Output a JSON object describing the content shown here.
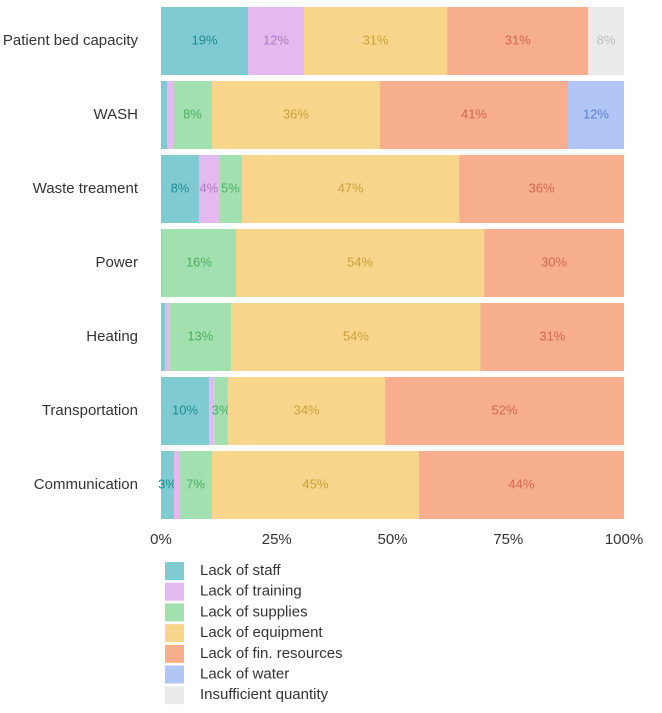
{
  "chart_data": {
    "type": "stacked-barh",
    "categories": [
      "Patient bed capacity",
      "WASH",
      "Waste treament",
      "Power",
      "Heating",
      "Transportation",
      "Communication"
    ],
    "series": [
      {
        "name": "Lack of staff",
        "color": "#80cbd1",
        "label_color": "#1f8a93",
        "values": [
          18.8,
          1.3,
          8.2,
          0.2,
          0.9,
          10.4,
          2.8
        ],
        "value_labels": [
          "19%",
          null,
          "8%",
          null,
          null,
          "10%",
          "3%"
        ]
      },
      {
        "name": "Lack of training",
        "color": "#e4b9ef",
        "label_color": "#b27bc4",
        "values": [
          12.1,
          1.3,
          4.3,
          0,
          0.9,
          1.1,
          1.1
        ],
        "value_labels": [
          "12%",
          null,
          "4%",
          null,
          null,
          null,
          null
        ]
      },
      {
        "name": "Lack of supplies",
        "color": "#a3e0b0",
        "label_color": "#4cae63",
        "values": [
          0,
          8.4,
          5.0,
          16.0,
          13.4,
          3.0,
          7.1
        ],
        "value_labels": [
          null,
          "8%",
          "5%",
          "16%",
          "13%",
          "3%",
          "7%"
        ]
      },
      {
        "name": "Lack of equipment",
        "color": "#f7d68b",
        "label_color": "#c9a13b",
        "values": [
          30.9,
          36.3,
          46.9,
          53.6,
          53.8,
          33.9,
          44.7
        ],
        "value_labels": [
          "31%",
          "36%",
          "47%",
          "54%",
          "54%",
          "34%",
          "45%"
        ]
      },
      {
        "name": "Lack of fin. resources",
        "color": "#f6ae8d",
        "label_color": "#d0694a",
        "values": [
          30.5,
          40.6,
          35.6,
          30.2,
          31.0,
          51.6,
          44.3
        ],
        "value_labels": [
          "31%",
          "41%",
          "36%",
          "30%",
          "31%",
          "52%",
          "44%"
        ]
      },
      {
        "name": "Lack of water",
        "color": "#b1c6f5",
        "label_color": "#5d7fd1",
        "values": [
          0,
          12.1,
          0,
          0,
          0,
          0,
          0
        ],
        "value_labels": [
          null,
          "12%",
          null,
          null,
          null,
          null,
          null
        ]
      },
      {
        "name": "Insufficient quantity",
        "color": "#ebebeb",
        "label_color": "#bdbdbd",
        "values": [
          7.7,
          0,
          0,
          0,
          0,
          0,
          0
        ],
        "value_labels": [
          "8%",
          null,
          null,
          null,
          null,
          null,
          null
        ]
      }
    ],
    "xlim": [
      0,
      100
    ],
    "xticks": [
      {
        "value": 0,
        "label": "0%"
      },
      {
        "value": 25,
        "label": "25%"
      },
      {
        "value": 50,
        "label": "50%"
      },
      {
        "value": 75,
        "label": "75%"
      },
      {
        "value": 100,
        "label": "100%"
      }
    ],
    "grid": false,
    "legend": "bottom"
  }
}
